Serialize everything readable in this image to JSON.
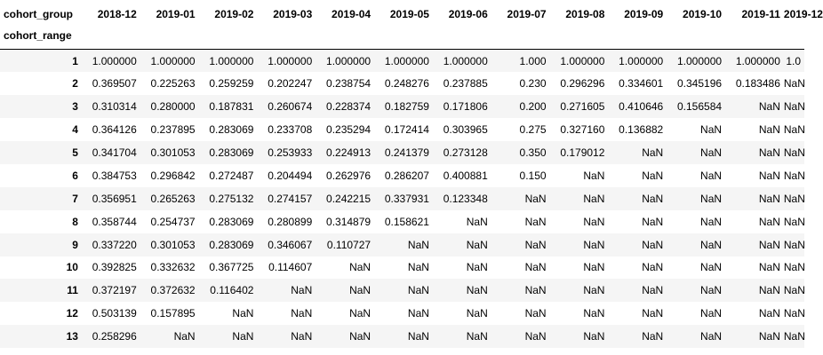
{
  "table": {
    "column_header_label": "cohort_group",
    "index_header_label": "cohort_range",
    "columns": [
      "2018-12",
      "2019-01",
      "2019-02",
      "2019-03",
      "2019-04",
      "2019-05",
      "2019-06",
      "2019-07",
      "2019-08",
      "2019-09",
      "2019-10",
      "2019-11",
      "2019-12"
    ],
    "rows": [
      {
        "index": "1",
        "values": [
          "1.000000",
          "1.000000",
          "1.000000",
          "1.000000",
          "1.000000",
          "1.000000",
          "1.000000",
          "1.000",
          "1.000000",
          "1.000000",
          "1.000000",
          "1.000000",
          "1.0"
        ]
      },
      {
        "index": "2",
        "values": [
          "0.369507",
          "0.225263",
          "0.259259",
          "0.202247",
          "0.238754",
          "0.248276",
          "0.237885",
          "0.230",
          "0.296296",
          "0.334601",
          "0.345196",
          "0.183486",
          "NaN"
        ]
      },
      {
        "index": "3",
        "values": [
          "0.310314",
          "0.280000",
          "0.187831",
          "0.260674",
          "0.228374",
          "0.182759",
          "0.171806",
          "0.200",
          "0.271605",
          "0.410646",
          "0.156584",
          "NaN",
          "NaN"
        ]
      },
      {
        "index": "4",
        "values": [
          "0.364126",
          "0.237895",
          "0.283069",
          "0.233708",
          "0.235294",
          "0.172414",
          "0.303965",
          "0.275",
          "0.327160",
          "0.136882",
          "NaN",
          "NaN",
          "NaN"
        ]
      },
      {
        "index": "5",
        "values": [
          "0.341704",
          "0.301053",
          "0.283069",
          "0.253933",
          "0.224913",
          "0.241379",
          "0.273128",
          "0.350",
          "0.179012",
          "NaN",
          "NaN",
          "NaN",
          "NaN"
        ]
      },
      {
        "index": "6",
        "values": [
          "0.384753",
          "0.296842",
          "0.272487",
          "0.204494",
          "0.262976",
          "0.286207",
          "0.400881",
          "0.150",
          "NaN",
          "NaN",
          "NaN",
          "NaN",
          "NaN"
        ]
      },
      {
        "index": "7",
        "values": [
          "0.356951",
          "0.265263",
          "0.275132",
          "0.274157",
          "0.242215",
          "0.337931",
          "0.123348",
          "NaN",
          "NaN",
          "NaN",
          "NaN",
          "NaN",
          "NaN"
        ]
      },
      {
        "index": "8",
        "values": [
          "0.358744",
          "0.254737",
          "0.283069",
          "0.280899",
          "0.314879",
          "0.158621",
          "NaN",
          "NaN",
          "NaN",
          "NaN",
          "NaN",
          "NaN",
          "NaN"
        ]
      },
      {
        "index": "9",
        "values": [
          "0.337220",
          "0.301053",
          "0.283069",
          "0.346067",
          "0.110727",
          "NaN",
          "NaN",
          "NaN",
          "NaN",
          "NaN",
          "NaN",
          "NaN",
          "NaN"
        ]
      },
      {
        "index": "10",
        "values": [
          "0.392825",
          "0.332632",
          "0.367725",
          "0.114607",
          "NaN",
          "NaN",
          "NaN",
          "NaN",
          "NaN",
          "NaN",
          "NaN",
          "NaN",
          "NaN"
        ]
      },
      {
        "index": "11",
        "values": [
          "0.372197",
          "0.372632",
          "0.116402",
          "NaN",
          "NaN",
          "NaN",
          "NaN",
          "NaN",
          "NaN",
          "NaN",
          "NaN",
          "NaN",
          "NaN"
        ]
      },
      {
        "index": "12",
        "values": [
          "0.503139",
          "0.157895",
          "NaN",
          "NaN",
          "NaN",
          "NaN",
          "NaN",
          "NaN",
          "NaN",
          "NaN",
          "NaN",
          "NaN",
          "NaN"
        ]
      },
      {
        "index": "13",
        "values": [
          "0.258296",
          "NaN",
          "NaN",
          "NaN",
          "NaN",
          "NaN",
          "NaN",
          "NaN",
          "NaN",
          "NaN",
          "NaN",
          "NaN",
          "NaN"
        ]
      }
    ]
  }
}
